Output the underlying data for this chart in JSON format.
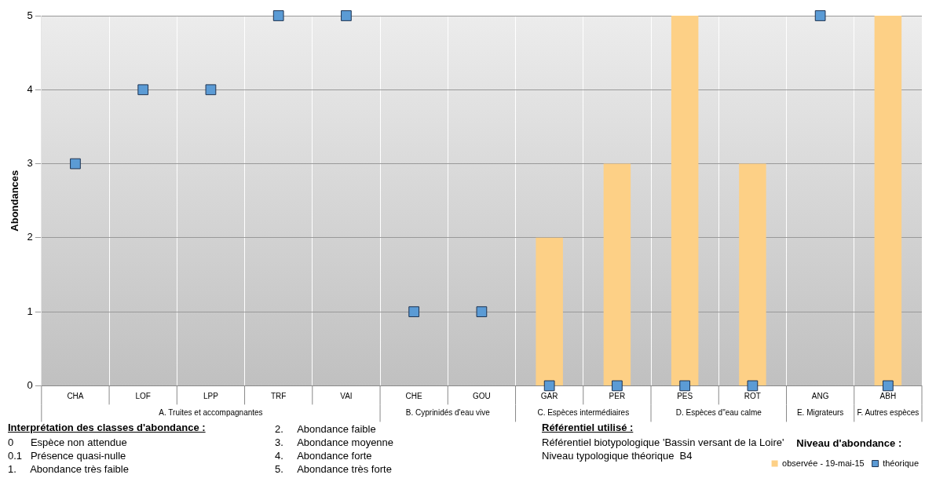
{
  "chart_data": {
    "type": "bar",
    "ylabel": "Abondances",
    "legend_title": "Niveau d'abondance :",
    "legend": "bottom right",
    "grid": true,
    "ylim": [
      0,
      5
    ],
    "yticks": [
      0,
      1,
      2,
      3,
      4,
      5
    ],
    "categories": [
      "CHA",
      "LOF",
      "LPP",
      "TRF",
      "VAI",
      "CHE",
      "GOU",
      "GAR",
      "PER",
      "PES",
      "ROT",
      "ANG",
      "ABH"
    ],
    "series": [
      {
        "name": "observée - 19-mai-15",
        "color": "#fdd086",
        "values": [
          null,
          null,
          null,
          null,
          null,
          null,
          null,
          2,
          3,
          5,
          3,
          null,
          5
        ]
      },
      {
        "name": "théorique",
        "type": "scatter",
        "marker": "square",
        "color": "#5b9bd5",
        "values": [
          3,
          4,
          4,
          5,
          5,
          1,
          1,
          0,
          0,
          0,
          0,
          5,
          0
        ]
      }
    ],
    "annotations": [
      "A. Truites et accompagnantes",
      "B. Cyprinidés d'eau vive",
      "C. Espèces intermédiaires",
      "D. Espèces d\"eau calme",
      "E. Migrateurs",
      "F. Autres espèces",
      "Interprétation des classes d'abondance :",
      "0      Espèce non attendue",
      "0.1   Présence quasi-nulle",
      "1.     Abondance très faible",
      "2.     Abondance faible",
      "3.     Abondance moyenne",
      "4.     Abondance forte",
      "5.     Abondance très forte",
      "Référentiel utilisé :",
      "Référentiel biotypologique 'Bassin versant de la Loire'",
      "Niveau typologique théorique  B4"
    ]
  }
}
